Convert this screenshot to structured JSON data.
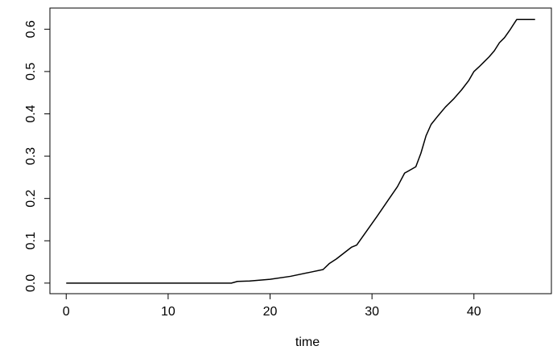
{
  "chart_data": {
    "type": "line",
    "title": "",
    "xlabel": "time",
    "ylabel": "",
    "xlim": [
      -1.6,
      47.6
    ],
    "ylim": [
      -0.025,
      0.65
    ],
    "x_ticks": [
      0,
      10,
      20,
      30,
      40
    ],
    "y_ticks": [
      0.0,
      0.1,
      0.2,
      0.3,
      0.4,
      0.5,
      0.6
    ],
    "x_tick_labels": [
      "0",
      "10",
      "20",
      "30",
      "40"
    ],
    "y_tick_labels": [
      "0.0",
      "0.1",
      "0.2",
      "0.3",
      "0.4",
      "0.5",
      "0.6"
    ],
    "grid": false,
    "series": [
      {
        "color": "#000000",
        "x": [
          0,
          16.2,
          16.8,
          18.0,
          20.0,
          22.0,
          24.0,
          25.2,
          25.8,
          26.5,
          27.3,
          28.0,
          28.5,
          29.5,
          30.5,
          31.5,
          32.5,
          33.2,
          33.8,
          34.3,
          34.8,
          35.3,
          35.8,
          36.5,
          37.2,
          38.0,
          38.8,
          39.5,
          40.0,
          40.5,
          41.0,
          41.5,
          42.0,
          42.5,
          43.0,
          43.5,
          44.2,
          44.5,
          45.0,
          46.0
        ],
        "y": [
          0,
          0,
          0.004,
          0.005,
          0.009,
          0.016,
          0.026,
          0.032,
          0.046,
          0.057,
          0.072,
          0.085,
          0.09,
          0.124,
          0.158,
          0.193,
          0.228,
          0.26,
          0.268,
          0.275,
          0.307,
          0.348,
          0.375,
          0.396,
          0.416,
          0.435,
          0.457,
          0.479,
          0.5,
          0.511,
          0.523,
          0.535,
          0.549,
          0.568,
          0.58,
          0.597,
          0.623,
          0.623,
          0.623,
          0.623
        ]
      }
    ]
  }
}
